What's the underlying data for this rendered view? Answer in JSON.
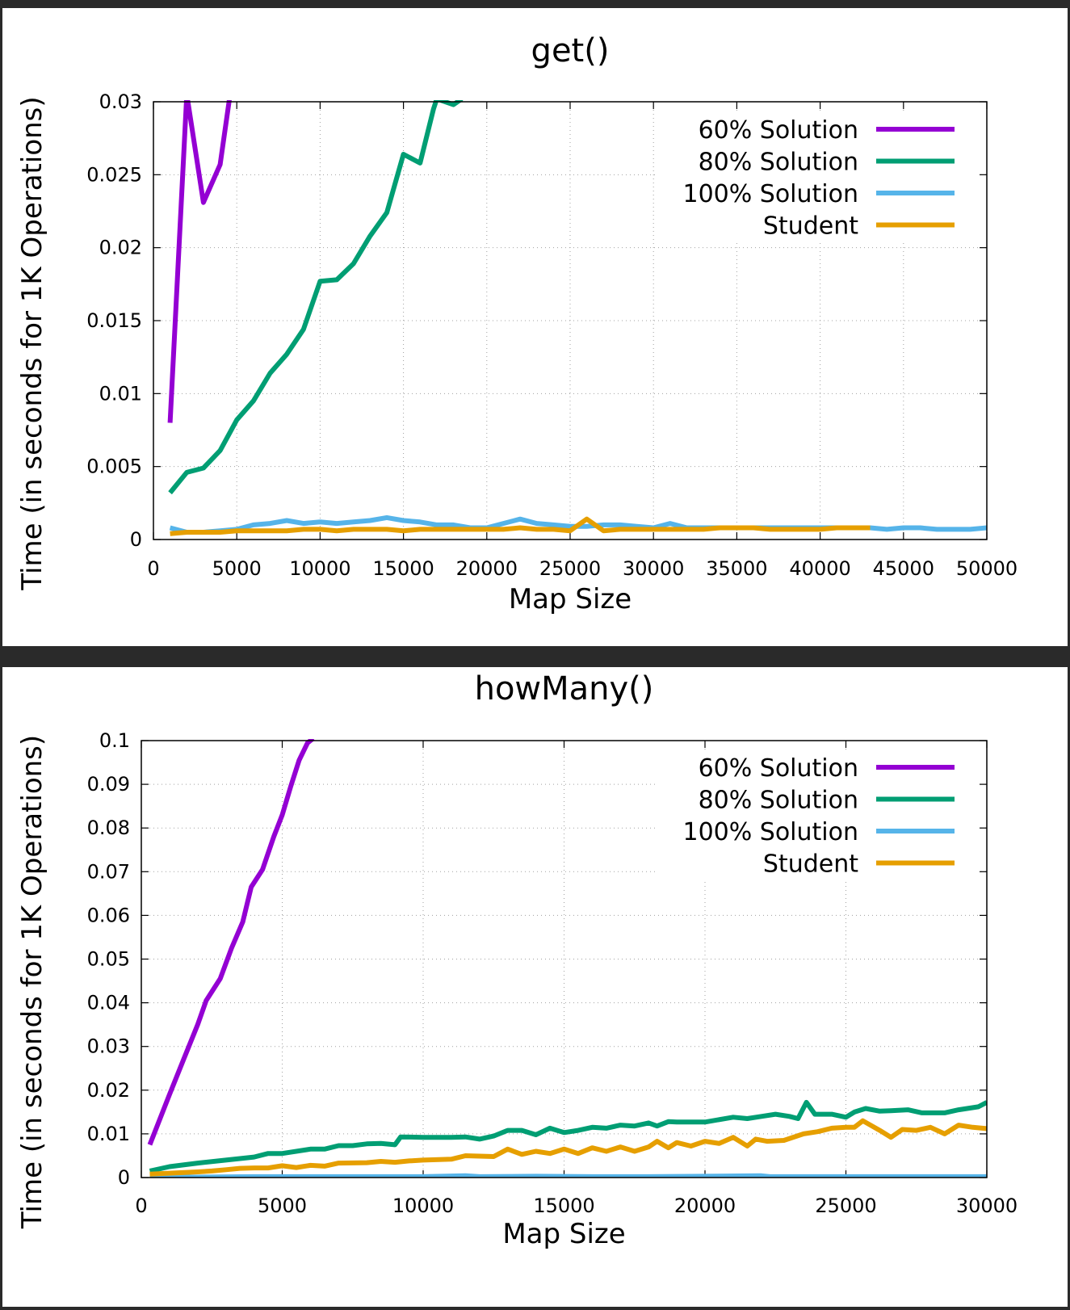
{
  "chart_data": [
    {
      "type": "line",
      "title": "get()",
      "xlabel": "Map Size",
      "ylabel": "Time (in seconds for 1K Operations)",
      "xlim": [
        0,
        50000
      ],
      "ylim": [
        0,
        0.03
      ],
      "xticks": [
        0,
        5000,
        10000,
        15000,
        20000,
        25000,
        30000,
        35000,
        40000,
        45000,
        50000
      ],
      "xtick_labels": [
        "0",
        "5000",
        "10000",
        "15000",
        "20000",
        "25000",
        "30000",
        "35000",
        "40000",
        "45000",
        "50000"
      ],
      "yticks": [
        0,
        0.005,
        0.01,
        0.015,
        0.02,
        0.025,
        0.03
      ],
      "ytick_labels": [
        "0",
        "0.005",
        "0.01",
        "0.015",
        "0.02",
        "0.025",
        "0.03"
      ],
      "grid": true,
      "legend_position": "top-right",
      "series": [
        {
          "name": "60% Solution",
          "color": "#9400d3",
          "x": [
            1000,
            2000,
            3000,
            4000,
            4600
          ],
          "y": [
            0.008,
            0.0305,
            0.0231,
            0.0257,
            0.0305
          ]
        },
        {
          "name": "80% Solution",
          "color": "#009e73",
          "x": [
            1000,
            2000,
            3000,
            4000,
            5000,
            6000,
            7000,
            8000,
            9000,
            10000,
            11000,
            12000,
            13000,
            14000,
            15000,
            16000,
            16800,
            17000,
            18000,
            18500
          ],
          "y": [
            0.0032,
            0.0046,
            0.0049,
            0.0061,
            0.0082,
            0.0095,
            0.0114,
            0.0127,
            0.0144,
            0.0177,
            0.0178,
            0.0189,
            0.0208,
            0.0224,
            0.0264,
            0.0258,
            0.0295,
            0.0302,
            0.0298,
            0.0302
          ]
        },
        {
          "name": "100% Solution",
          "color": "#56b4e9",
          "x": [
            1000,
            2000,
            3000,
            4000,
            5000,
            6000,
            7000,
            8000,
            9000,
            10000,
            11000,
            12000,
            13000,
            14000,
            15000,
            16000,
            17000,
            18000,
            19000,
            20000,
            21000,
            22000,
            23000,
            24000,
            25000,
            26000,
            27000,
            28000,
            29000,
            30000,
            31000,
            32000,
            33000,
            34000,
            35000,
            36000,
            37000,
            38000,
            39000,
            40000,
            41000,
            42000,
            43000,
            44000,
            45000,
            46000,
            47000,
            48000,
            49000,
            50000
          ],
          "y": [
            0.0008,
            0.0005,
            0.0005,
            0.0006,
            0.0007,
            0.001,
            0.0011,
            0.0013,
            0.0011,
            0.0012,
            0.0011,
            0.0012,
            0.0013,
            0.0015,
            0.0013,
            0.0012,
            0.001,
            0.001,
            0.0008,
            0.0008,
            0.0011,
            0.0014,
            0.0011,
            0.001,
            0.0009,
            0.0009,
            0.001,
            0.001,
            0.0009,
            0.0008,
            0.0011,
            0.0008,
            0.0008,
            0.0008,
            0.0008,
            0.0008,
            0.0008,
            0.0008,
            0.0008,
            0.0008,
            0.0008,
            0.0008,
            0.0008,
            0.0007,
            0.0008,
            0.0008,
            0.0007,
            0.0007,
            0.0007,
            0.0008
          ]
        },
        {
          "name": "Student",
          "color": "#e69f00",
          "x": [
            1000,
            2000,
            3000,
            4000,
            5000,
            6000,
            7000,
            8000,
            9000,
            10000,
            11000,
            12000,
            13000,
            14000,
            15000,
            16000,
            17000,
            18000,
            19000,
            20000,
            21000,
            22000,
            23000,
            24000,
            25000,
            26000,
            27000,
            28000,
            29000,
            30000,
            31000,
            32000,
            33000,
            34000,
            35000,
            36000,
            37000,
            38000,
            39000,
            40000,
            41000,
            42000,
            43000
          ],
          "y": [
            0.0004,
            0.0005,
            0.0005,
            0.0005,
            0.0006,
            0.0006,
            0.0006,
            0.0006,
            0.0007,
            0.0007,
            0.0006,
            0.0007,
            0.0007,
            0.0007,
            0.0006,
            0.0007,
            0.0007,
            0.0007,
            0.0007,
            0.0007,
            0.0007,
            0.0008,
            0.0007,
            0.0007,
            0.0006,
            0.0014,
            0.0006,
            0.0007,
            0.0007,
            0.0007,
            0.0007,
            0.0007,
            0.0007,
            0.0008,
            0.0008,
            0.0008,
            0.0007,
            0.0007,
            0.0007,
            0.0007,
            0.0008,
            0.0008,
            0.0008
          ]
        }
      ]
    },
    {
      "type": "line",
      "title": "howMany()",
      "xlabel": "Map Size",
      "ylabel": "Time (in seconds for 1K Operations)",
      "xlim": [
        0,
        30000
      ],
      "ylim": [
        0,
        0.1
      ],
      "xticks": [
        0,
        5000,
        10000,
        15000,
        20000,
        25000,
        30000
      ],
      "xtick_labels": [
        "0",
        "5000",
        "10000",
        "15000",
        "20000",
        "25000",
        "30000"
      ],
      "yticks": [
        0,
        0.01,
        0.02,
        0.03,
        0.04,
        0.05,
        0.06,
        0.07,
        0.08,
        0.09,
        0.1
      ],
      "ytick_labels": [
        "0",
        "0.01",
        "0.02",
        "0.03",
        "0.04",
        "0.05",
        "0.06",
        "0.07",
        "0.08",
        "0.09",
        "0.1"
      ],
      "grid": true,
      "legend_position": "top-right",
      "series": [
        {
          "name": "60% Solution",
          "color": "#9400d3",
          "x": [
            300,
            1000,
            1500,
            2000,
            2300,
            2800,
            3200,
            3600,
            3900,
            4300,
            4700,
            5000,
            5300,
            5600,
            5900,
            6100
          ],
          "y": [
            0.0075,
            0.019,
            0.027,
            0.035,
            0.0405,
            0.0455,
            0.0525,
            0.0585,
            0.0665,
            0.0705,
            0.078,
            0.083,
            0.0895,
            0.0955,
            0.0995,
            0.1005
          ]
        },
        {
          "name": "80% Solution",
          "color": "#009e73",
          "x": [
            300,
            1000,
            2000,
            3000,
            4000,
            4500,
            5000,
            6000,
            6500,
            7000,
            7500,
            8000,
            8500,
            9000,
            9200,
            10000,
            11000,
            11500,
            12000,
            12500,
            13000,
            13500,
            14000,
            14500,
            15000,
            15500,
            16000,
            16500,
            17000,
            17500,
            18000,
            18300,
            18700,
            19000,
            20000,
            21000,
            21500,
            22000,
            22500,
            23000,
            23300,
            23600,
            23900,
            24500,
            25000,
            25300,
            25700,
            26200,
            26600,
            27200,
            27700,
            28500,
            29000,
            29700,
            30000
          ],
          "y": [
            0.0015,
            0.0025,
            0.0033,
            0.004,
            0.0047,
            0.0055,
            0.0055,
            0.0065,
            0.0065,
            0.0073,
            0.0073,
            0.0077,
            0.0078,
            0.0075,
            0.0093,
            0.0092,
            0.0092,
            0.0093,
            0.0088,
            0.0095,
            0.0108,
            0.0108,
            0.0098,
            0.0113,
            0.0103,
            0.0108,
            0.0115,
            0.0113,
            0.012,
            0.0118,
            0.0125,
            0.0118,
            0.0128,
            0.0127,
            0.0127,
            0.0138,
            0.0135,
            0.014,
            0.0145,
            0.014,
            0.0135,
            0.0172,
            0.0145,
            0.0145,
            0.0138,
            0.015,
            0.0158,
            0.0152,
            0.0153,
            0.0155,
            0.0148,
            0.0148,
            0.0155,
            0.0162,
            0.0172
          ]
        },
        {
          "name": "100% Solution",
          "color": "#56b4e9",
          "x": [
            300,
            2000,
            4000,
            6000,
            8000,
            10000,
            11500,
            12000,
            14000,
            16000,
            18000,
            20000,
            22000,
            22300,
            24000,
            26000,
            28000,
            30000
          ],
          "y": [
            0.0001,
            0.0001,
            0.0002,
            0.0002,
            0.0002,
            0.0002,
            0.0004,
            0.0002,
            0.0003,
            0.0002,
            0.0002,
            0.0003,
            0.0004,
            0.0002,
            0.0002,
            0.0002,
            0.0002,
            0.0002
          ]
        },
        {
          "name": "Student",
          "color": "#e69f00",
          "x": [
            300,
            1000,
            2000,
            2500,
            3000,
            3500,
            4000,
            4500,
            5000,
            5500,
            6000,
            6500,
            7000,
            8000,
            8500,
            9000,
            9500,
            10000,
            11000,
            11500,
            12000,
            12500,
            13000,
            13500,
            14000,
            14500,
            15000,
            15500,
            16000,
            16500,
            17000,
            17500,
            18000,
            18300,
            18700,
            19000,
            19500,
            20000,
            20500,
            21000,
            21500,
            21800,
            22200,
            22800,
            23500,
            24000,
            24500,
            25000,
            25300,
            25600,
            26200,
            26600,
            27000,
            27500,
            28000,
            28500,
            29000,
            29500,
            30000
          ],
          "y": [
            0.0008,
            0.001,
            0.0013,
            0.0015,
            0.0018,
            0.0021,
            0.0022,
            0.0022,
            0.0027,
            0.0023,
            0.0028,
            0.0026,
            0.0033,
            0.0034,
            0.0037,
            0.0035,
            0.0038,
            0.004,
            0.0042,
            0.005,
            0.0049,
            0.0048,
            0.0065,
            0.0053,
            0.006,
            0.0055,
            0.0065,
            0.0055,
            0.0068,
            0.006,
            0.007,
            0.006,
            0.007,
            0.0083,
            0.0068,
            0.008,
            0.0072,
            0.0083,
            0.0078,
            0.0092,
            0.0072,
            0.0088,
            0.0083,
            0.0085,
            0.01,
            0.0105,
            0.0113,
            0.0115,
            0.0115,
            0.013,
            0.0108,
            0.0092,
            0.011,
            0.0108,
            0.0115,
            0.01,
            0.012,
            0.0115,
            0.0112
          ]
        }
      ]
    }
  ]
}
